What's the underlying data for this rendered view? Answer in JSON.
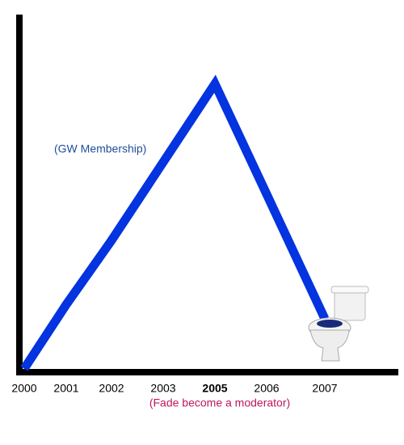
{
  "chart_data": {
    "type": "line",
    "categories": [
      "2000",
      "2001",
      "2002",
      "2003",
      "2005",
      "2006",
      "2007"
    ],
    "values": [
      1,
      19,
      37,
      59,
      81,
      50,
      15
    ],
    "color": "#0433e0",
    "ylim": [
      0,
      100
    ],
    "highlight_index": 4,
    "highlight_color": "#c0165e",
    "annotations": [
      {
        "text": "(GW Membership)",
        "color": "#1f4e9a"
      },
      {
        "text": "(Fade become a moderator)",
        "color": "#c0165e"
      }
    ]
  }
}
